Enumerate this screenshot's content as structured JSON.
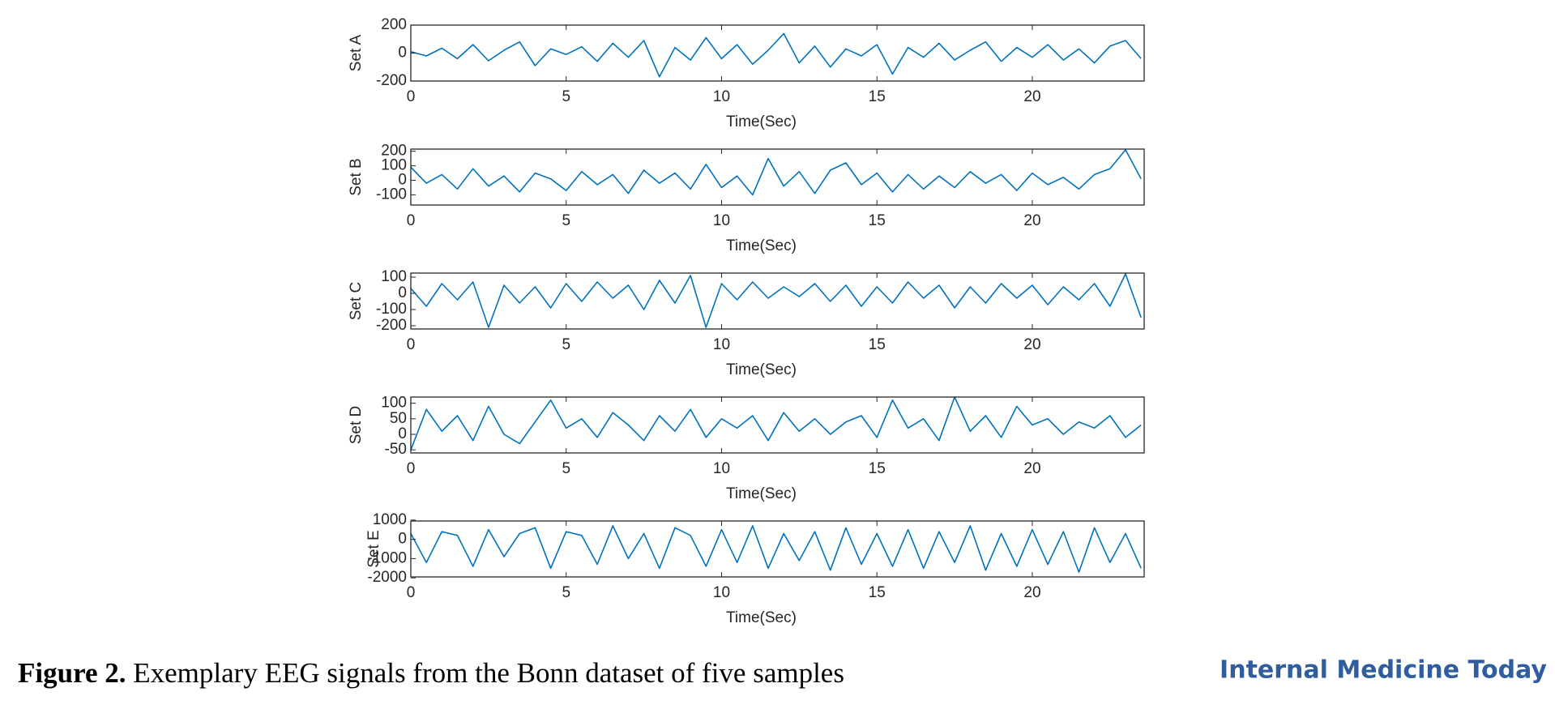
{
  "chart_data": [
    {
      "type": "line",
      "ylabel": "Set A",
      "xlabel": "Time(Sec)",
      "color": "#0072bd",
      "x": [
        0,
        0.5,
        1,
        1.5,
        2,
        2.5,
        3,
        3.5,
        4,
        4.5,
        5,
        5.5,
        6,
        6.5,
        7,
        7.5,
        8,
        8.5,
        9,
        9.5,
        10,
        10.5,
        11,
        11.5,
        12,
        12.5,
        13,
        13.5,
        14,
        14.5,
        15,
        15.5,
        16,
        16.5,
        17,
        17.5,
        18,
        18.5,
        19,
        19.5,
        20,
        20.5,
        21,
        21.5,
        22,
        22.5,
        23,
        23.5
      ],
      "values": [
        10,
        -20,
        35,
        -40,
        60,
        -55,
        20,
        80,
        -90,
        30,
        -10,
        45,
        -60,
        70,
        -30,
        90,
        -170,
        40,
        -50,
        110,
        -40,
        60,
        -80,
        20,
        140,
        -70,
        50,
        -100,
        30,
        -20,
        60,
        -150,
        40,
        -30,
        70,
        -50,
        20,
        80,
        -60,
        40,
        -30,
        60,
        -50,
        30,
        -70,
        50,
        90,
        -40
      ],
      "xlim": [
        0,
        23.6
      ],
      "xticks": [
        0,
        5,
        10,
        15,
        20
      ],
      "ylim": [
        -200,
        200
      ],
      "yticks": [
        -200,
        0,
        200
      ]
    },
    {
      "type": "line",
      "ylabel": "Set B",
      "xlabel": "Time(Sec)",
      "color": "#0072bd",
      "x": [
        0,
        0.5,
        1,
        1.5,
        2,
        2.5,
        3,
        3.5,
        4,
        4.5,
        5,
        5.5,
        6,
        6.5,
        7,
        7.5,
        8,
        8.5,
        9,
        9.5,
        10,
        10.5,
        11,
        11.5,
        12,
        12.5,
        13,
        13.5,
        14,
        14.5,
        15,
        15.5,
        16,
        16.5,
        17,
        17.5,
        18,
        18.5,
        19,
        19.5,
        20,
        20.5,
        21,
        21.5,
        22,
        22.5,
        23,
        23.5
      ],
      "values": [
        90,
        -20,
        40,
        -60,
        80,
        -40,
        30,
        -80,
        50,
        10,
        -70,
        60,
        -30,
        40,
        -90,
        70,
        -20,
        50,
        -60,
        110,
        -50,
        30,
        -100,
        150,
        -40,
        60,
        -90,
        70,
        120,
        -30,
        50,
        -80,
        40,
        -60,
        30,
        -50,
        60,
        -20,
        40,
        -70,
        50,
        -30,
        20,
        -60,
        40,
        80,
        210,
        10
      ],
      "xlim": [
        0,
        23.6
      ],
      "xticks": [
        0,
        5,
        10,
        15,
        20
      ],
      "ylim": [
        -170,
        215
      ],
      "yticks": [
        -100,
        0,
        100,
        200
      ]
    },
    {
      "type": "line",
      "ylabel": "Set C",
      "xlabel": "Time(Sec)",
      "color": "#0072bd",
      "x": [
        0,
        0.5,
        1,
        1.5,
        2,
        2.5,
        3,
        3.5,
        4,
        4.5,
        5,
        5.5,
        6,
        6.5,
        7,
        7.5,
        8,
        8.5,
        9,
        9.5,
        10,
        10.5,
        11,
        11.5,
        12,
        12.5,
        13,
        13.5,
        14,
        14.5,
        15,
        15.5,
        16,
        16.5,
        17,
        17.5,
        18,
        18.5,
        19,
        19.5,
        20,
        20.5,
        21,
        21.5,
        22,
        22.5,
        23,
        23.5
      ],
      "values": [
        30,
        -80,
        60,
        -40,
        70,
        -210,
        50,
        -60,
        40,
        -90,
        60,
        -50,
        70,
        -30,
        50,
        -100,
        80,
        -60,
        110,
        -210,
        60,
        -40,
        70,
        -30,
        40,
        -20,
        60,
        -50,
        50,
        -80,
        40,
        -60,
        70,
        -30,
        50,
        -90,
        40,
        -60,
        60,
        -30,
        50,
        -70,
        40,
        -40,
        60,
        -80,
        120,
        -150
      ],
      "xlim": [
        0,
        23.6
      ],
      "xticks": [
        0,
        5,
        10,
        15,
        20
      ],
      "ylim": [
        -220,
        125
      ],
      "yticks": [
        -200,
        -100,
        0,
        100
      ]
    },
    {
      "type": "line",
      "ylabel": "Set D",
      "xlabel": "Time(Sec)",
      "color": "#0072bd",
      "x": [
        0,
        0.5,
        1,
        1.5,
        2,
        2.5,
        3,
        3.5,
        4,
        4.5,
        5,
        5.5,
        6,
        6.5,
        7,
        7.5,
        8,
        8.5,
        9,
        9.5,
        10,
        10.5,
        11,
        11.5,
        12,
        12.5,
        13,
        13.5,
        14,
        14.5,
        15,
        15.5,
        16,
        16.5,
        17,
        17.5,
        18,
        18.5,
        19,
        19.5,
        20,
        20.5,
        21,
        21.5,
        22,
        22.5,
        23,
        23.5
      ],
      "values": [
        -50,
        80,
        10,
        60,
        -20,
        90,
        0,
        -30,
        40,
        110,
        20,
        50,
        -10,
        70,
        30,
        -20,
        60,
        10,
        80,
        -10,
        50,
        20,
        60,
        -20,
        70,
        10,
        50,
        0,
        40,
        60,
        -10,
        110,
        20,
        50,
        -20,
        120,
        10,
        60,
        -10,
        90,
        30,
        50,
        0,
        40,
        20,
        60,
        -10,
        30
      ],
      "xlim": [
        0,
        23.6
      ],
      "xticks": [
        0,
        5,
        10,
        15,
        20
      ],
      "ylim": [
        -60,
        120
      ],
      "yticks": [
        -50,
        0,
        50,
        100
      ]
    },
    {
      "type": "line",
      "ylabel": "Set E",
      "xlabel": "Time(Sec)",
      "color": "#0072bd",
      "x": [
        0,
        0.5,
        1,
        1.5,
        2,
        2.5,
        3,
        3.5,
        4,
        4.5,
        5,
        5.5,
        6,
        6.5,
        7,
        7.5,
        8,
        8.5,
        9,
        9.5,
        10,
        10.5,
        11,
        11.5,
        12,
        12.5,
        13,
        13.5,
        14,
        14.5,
        15,
        15.5,
        16,
        16.5,
        17,
        17.5,
        18,
        18.5,
        19,
        19.5,
        20,
        20.5,
        21,
        21.5,
        22,
        22.5,
        23,
        23.5
      ],
      "values": [
        300,
        -1200,
        400,
        200,
        -1400,
        500,
        -900,
        300,
        600,
        -1500,
        400,
        200,
        -1300,
        700,
        -1000,
        300,
        -1500,
        600,
        200,
        -1400,
        500,
        -1200,
        700,
        -1500,
        300,
        -1100,
        400,
        -1600,
        600,
        -1300,
        300,
        -1400,
        500,
        -1500,
        400,
        -1200,
        700,
        -1600,
        300,
        -1400,
        500,
        -1300,
        400,
        -1700,
        600,
        -1200,
        300,
        -1500
      ],
      "xlim": [
        0,
        23.6
      ],
      "xticks": [
        0,
        5,
        10,
        15,
        20
      ],
      "ylim": [
        -1950,
        950
      ],
      "yticks": [
        -2000,
        -1000,
        0,
        1000
      ]
    }
  ],
  "figure_label": "Figure 2.",
  "caption": "Exemplary EEG signals from the Bonn dataset of five samples",
  "brand": "Internal Medicine Today"
}
